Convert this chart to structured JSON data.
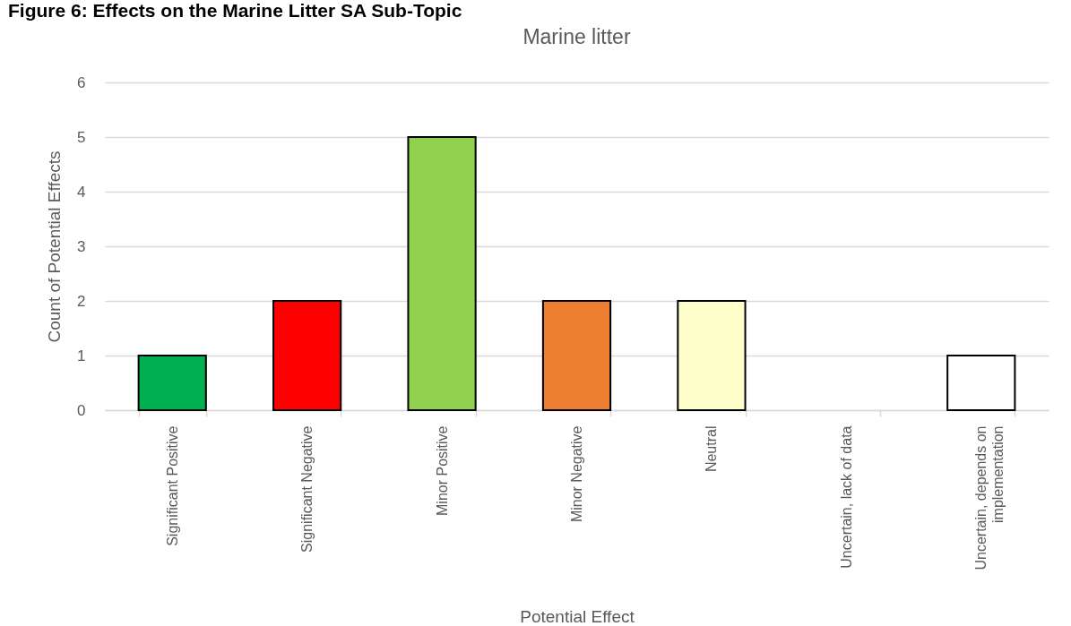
{
  "chart_data": {
    "type": "bar",
    "title": "Marine litter",
    "xlabel": "Potential Effect",
    "ylabel": "Count of Potential Effects",
    "annotations": [
      "Figure 6: Effects on the Marine Litter SA Sub-Topic"
    ],
    "categories": [
      "Significant Positive",
      "Significant Negative",
      "Minor Positive",
      "Minor Negative",
      "Neutral",
      "Uncertain, lack of data",
      "Uncertain, depends on implementation"
    ],
    "values": [
      1,
      2,
      5,
      2,
      2,
      0,
      1
    ],
    "colors": [
      "#00b050",
      "#ff0000",
      "#92d050",
      "#ed7d31",
      "#ffffcc",
      "#ffffff",
      "#ffffff"
    ],
    "ylim": [
      0,
      6
    ],
    "yticks": [
      0,
      1,
      2,
      3,
      4,
      5,
      6
    ],
    "grid": "y"
  }
}
